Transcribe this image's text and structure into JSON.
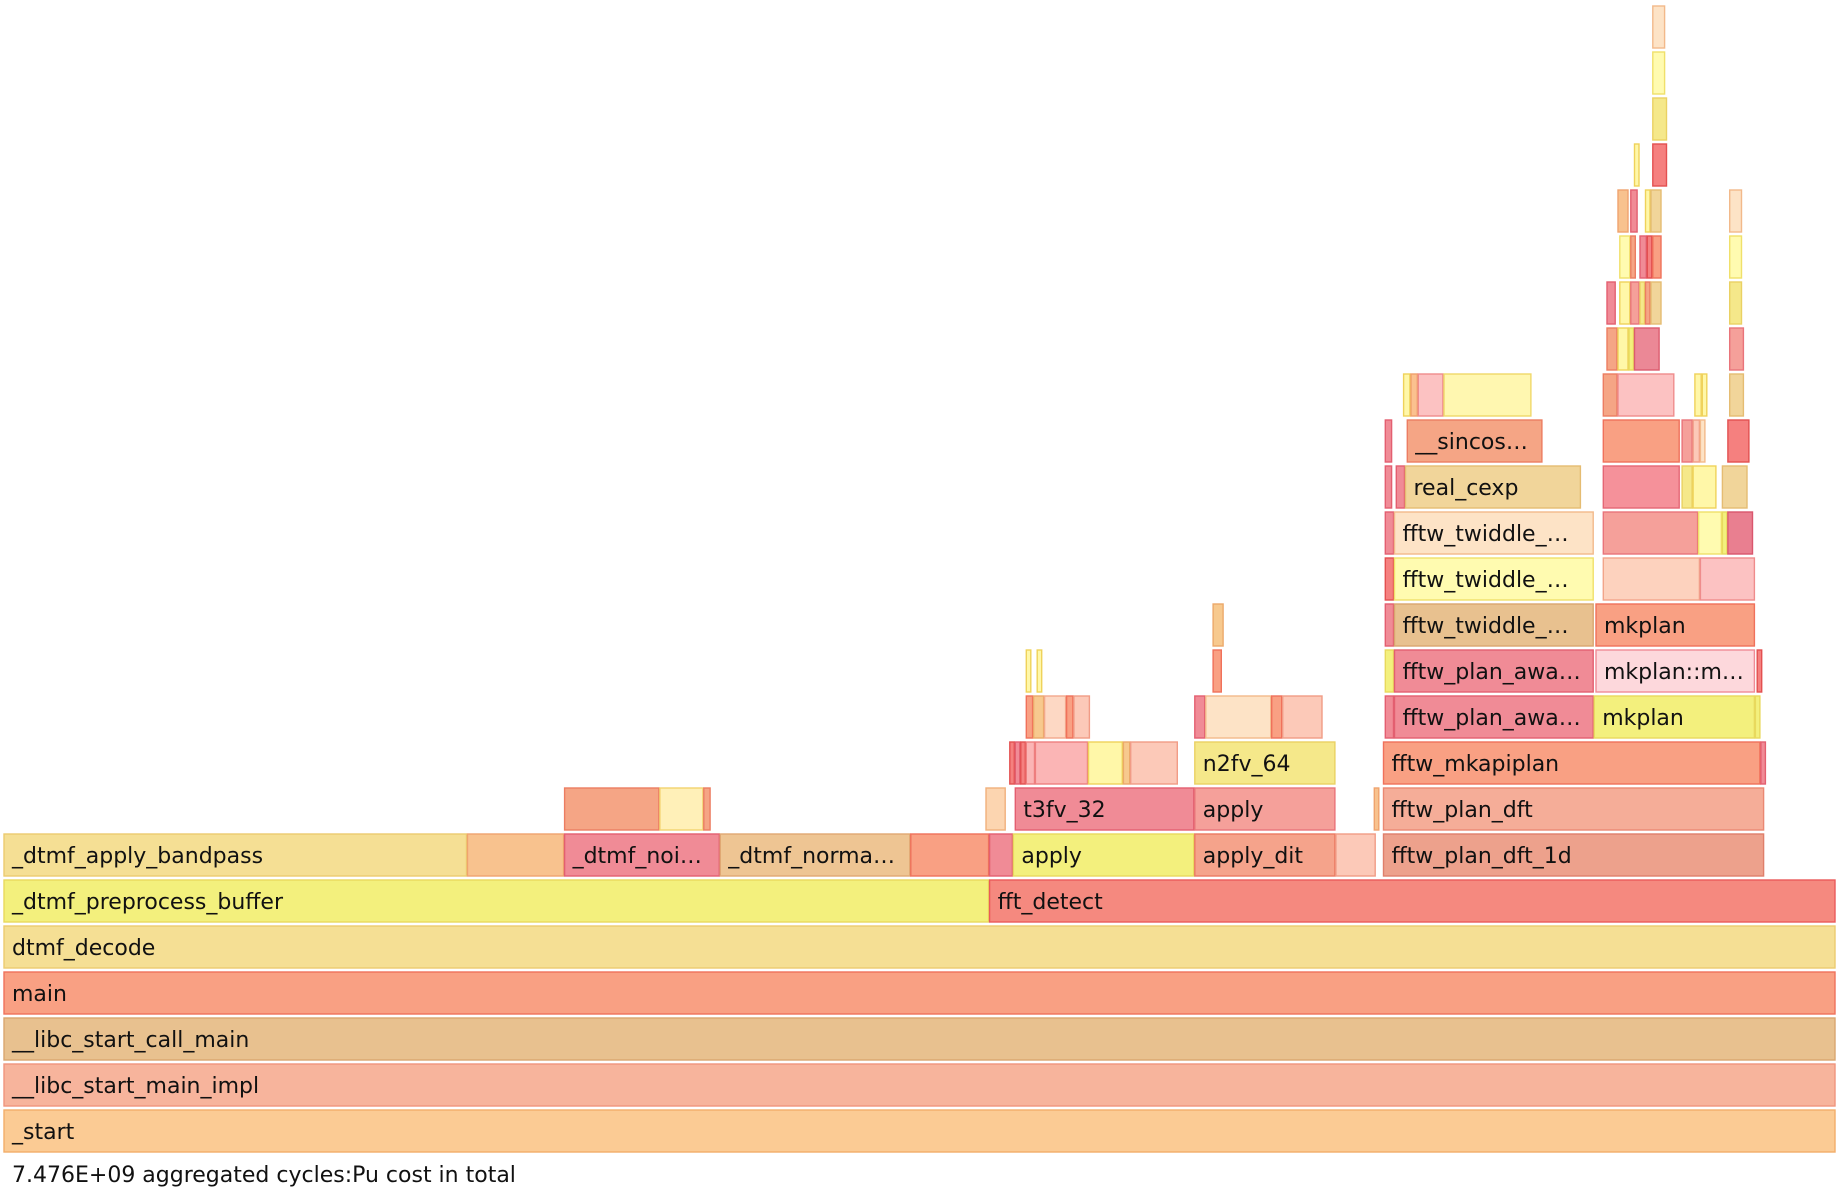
{
  "chart_data": {
    "type": "flamegraph",
    "total_units": 1000,
    "frames": [
      {
        "d": 0,
        "s": 0,
        "w": 1000,
        "name": "_start",
        "fill": "#fbcb94",
        "stroke": "#f3ad6a"
      },
      {
        "d": 1,
        "s": 0,
        "w": 1000,
        "name": "__libc_start_main_impl",
        "fill": "#f7b49c",
        "stroke": "#ef957d"
      },
      {
        "d": 2,
        "s": 0,
        "w": 1000,
        "name": "__libc_start_call_main",
        "fill": "#e8c18f",
        "stroke": "#d9a56f"
      },
      {
        "d": 3,
        "s": 0,
        "w": 1000,
        "name": "main",
        "fill": "#f9a083",
        "stroke": "#f0715b"
      },
      {
        "d": 4,
        "s": 0,
        "w": 1000,
        "name": "dtmf_decode",
        "fill": "#f5df94",
        "stroke": "#eccb6f"
      },
      {
        "d": 5,
        "s": 0,
        "w": 538,
        "name": "_dtmf_preprocess_buffer",
        "fill": "#f3f07d",
        "stroke": "#e8d95d"
      },
      {
        "d": 5,
        "s": 538,
        "w": 462,
        "name": "fft_detect",
        "fill": "#f5897f",
        "stroke": "#ea5a5a"
      },
      {
        "d": 6,
        "s": 0,
        "w": 253,
        "name": "_dtmf_apply_bandpass",
        "fill": "#f5df94",
        "stroke": "#eccb6f"
      },
      {
        "d": 6,
        "s": 253,
        "w": 53,
        "name": "",
        "fill": "#f8c28e",
        "stroke": "#efa36e"
      },
      {
        "d": 6,
        "s": 306,
        "w": 85,
        "name": "_dtmf_noi…",
        "fill": "#f08b96",
        "stroke": "#e35f70"
      },
      {
        "d": 6,
        "s": 391,
        "w": 104,
        "name": "_dtmf_norma…",
        "fill": "#eec593",
        "stroke": "#e0a873"
      },
      {
        "d": 6,
        "s": 495,
        "w": 43,
        "name": "",
        "fill": "#f9a083",
        "stroke": "#f0715b"
      },
      {
        "d": 6,
        "s": 538,
        "w": 13,
        "name": "",
        "fill": "#f08b96",
        "stroke": "#e35f70"
      },
      {
        "d": 6,
        "s": 551,
        "w": 99,
        "name": "apply",
        "fill": "#f3f07d",
        "stroke": "#e8d95d"
      },
      {
        "d": 6,
        "s": 650,
        "w": 77,
        "name": "apply_dit",
        "fill": "#f5a38b",
        "stroke": "#eb7a62"
      },
      {
        "d": 6,
        "s": 727,
        "w": 22,
        "name": "",
        "fill": "#fcc9b8",
        "stroke": "#f19c86"
      },
      {
        "d": 6,
        "s": 753,
        "w": 208,
        "name": "fftw_plan_dft_1d",
        "fill": "#eda18c",
        "stroke": "#df7f6b"
      },
      {
        "d": 7,
        "s": 306,
        "w": 52,
        "name": "",
        "fill": "#f5a585",
        "stroke": "#ec7d62"
      },
      {
        "d": 7,
        "s": 358,
        "w": 24,
        "name": "",
        "fill": "#fff0b8",
        "stroke": "#f2d36f"
      },
      {
        "d": 7,
        "s": 382,
        "w": 4,
        "name": "",
        "fill": "#f5a585",
        "stroke": "#ec7d62"
      },
      {
        "d": 7,
        "s": 536,
        "w": 11,
        "name": "",
        "fill": "#fcd5b0",
        "stroke": "#f1b07c"
      },
      {
        "d": 7,
        "s": 552,
        "w": 98,
        "name": "t3fv_32",
        "fill": "#f08b96",
        "stroke": "#e35f70"
      },
      {
        "d": 7,
        "s": 650,
        "w": 77,
        "name": "apply",
        "fill": "#f5a09a",
        "stroke": "#e9747a"
      },
      {
        "d": 7,
        "s": 748,
        "w": 3,
        "name": "",
        "fill": "#f8c28e",
        "stroke": "#efa36e"
      },
      {
        "d": 7,
        "s": 753,
        "w": 208,
        "name": "fftw_plan_dft",
        "fill": "#f5ad98",
        "stroke": "#ea8873"
      },
      {
        "d": 8,
        "s": 549,
        "w": 3,
        "name": "",
        "fill": "#f5807f",
        "stroke": "#e35050"
      },
      {
        "d": 8,
        "s": 552,
        "w": 3,
        "name": "",
        "fill": "#f08b96",
        "stroke": "#e35f70"
      },
      {
        "d": 8,
        "s": 555,
        "w": 3,
        "name": "",
        "fill": "#f5807f",
        "stroke": "#e35050"
      },
      {
        "d": 8,
        "s": 558,
        "w": 5,
        "name": "",
        "fill": "#fbb5b5",
        "stroke": "#ee7f7f"
      },
      {
        "d": 8,
        "s": 563,
        "w": 29,
        "name": "",
        "fill": "#fbb5b5",
        "stroke": "#ee7f7f"
      },
      {
        "d": 8,
        "s": 592,
        "w": 19,
        "name": "",
        "fill": "#fff7a8",
        "stroke": "#efd25a"
      },
      {
        "d": 8,
        "s": 611,
        "w": 4,
        "name": "",
        "fill": "#f7c98e",
        "stroke": "#eca96a"
      },
      {
        "d": 8,
        "s": 615,
        "w": 26,
        "name": "",
        "fill": "#fcc9b8",
        "stroke": "#f19c86"
      },
      {
        "d": 8,
        "s": 650,
        "w": 77,
        "name": "n2fv_64",
        "fill": "#f5e88a",
        "stroke": "#ead163"
      },
      {
        "d": 8,
        "s": 753,
        "w": 206,
        "name": "fftw_mkapiplan",
        "fill": "#f9a083",
        "stroke": "#f0715b"
      },
      {
        "d": 8,
        "s": 959,
        "w": 3,
        "name": "",
        "fill": "#f08b96",
        "stroke": "#e35f70"
      },
      {
        "d": 9,
        "s": 558,
        "w": 4,
        "name": "",
        "fill": "#f9a083",
        "stroke": "#f0715b"
      },
      {
        "d": 9,
        "s": 562,
        "w": 6,
        "name": "",
        "fill": "#f7c98e",
        "stroke": "#eca96a"
      },
      {
        "d": 9,
        "s": 568,
        "w": 12,
        "name": "",
        "fill": "#fdd8c4",
        "stroke": "#f2a98d"
      },
      {
        "d": 9,
        "s": 580,
        "w": 4,
        "name": "",
        "fill": "#f9a083",
        "stroke": "#f0715b"
      },
      {
        "d": 9,
        "s": 584,
        "w": 9,
        "name": "",
        "fill": "#fcc9b8",
        "stroke": "#f19c86"
      },
      {
        "d": 9,
        "s": 650,
        "w": 6,
        "name": "",
        "fill": "#f08b96",
        "stroke": "#e35f70"
      },
      {
        "d": 9,
        "s": 656,
        "w": 36,
        "name": "",
        "fill": "#fde3c6",
        "stroke": "#f2b98a"
      },
      {
        "d": 9,
        "s": 692,
        "w": 6,
        "name": "",
        "fill": "#f9a083",
        "stroke": "#f0715b"
      },
      {
        "d": 9,
        "s": 698,
        "w": 22,
        "name": "",
        "fill": "#fcc9b8",
        "stroke": "#f19c86"
      },
      {
        "d": 9,
        "s": 754,
        "w": 5,
        "name": "",
        "fill": "#f08b96",
        "stroke": "#e35f70"
      },
      {
        "d": 9,
        "s": 759,
        "w": 109,
        "name": "fftw_plan_awa…",
        "fill": "#f08b96",
        "stroke": "#e35f70"
      },
      {
        "d": 9,
        "s": 868,
        "w": 88,
        "name": "mkplan",
        "fill": "#f3f07d",
        "stroke": "#e8d95d"
      },
      {
        "d": 9,
        "s": 956,
        "w": 3,
        "name": "",
        "fill": "#f3f07d",
        "stroke": "#e8d95d"
      },
      {
        "d": 10,
        "s": 558,
        "w": 3,
        "name": "",
        "fill": "#fff7a8",
        "stroke": "#efd25a"
      },
      {
        "d": 10,
        "s": 564,
        "w": 3,
        "name": "",
        "fill": "#fff7a8",
        "stroke": "#efd25a"
      },
      {
        "d": 10,
        "s": 660,
        "w": 5,
        "name": "",
        "fill": "#f9a083",
        "stroke": "#f0715b"
      },
      {
        "d": 10,
        "s": 754,
        "w": 5,
        "name": "",
        "fill": "#f3f07d",
        "stroke": "#e8d95d"
      },
      {
        "d": 10,
        "s": 759,
        "w": 109,
        "name": "fftw_plan_awa…",
        "fill": "#f08b96",
        "stroke": "#e35f70"
      },
      {
        "d": 10,
        "s": 869,
        "w": 87,
        "name": "mkplan::m…",
        "fill": "#fdd8dc",
        "stroke": "#f08b96"
      },
      {
        "d": 10,
        "s": 957,
        "w": 3,
        "name": "",
        "fill": "#f5807f",
        "stroke": "#e35050"
      },
      {
        "d": 11,
        "s": 660,
        "w": 6,
        "name": "",
        "fill": "#f7c98e",
        "stroke": "#eca96a"
      },
      {
        "d": 11,
        "s": 754,
        "w": 5,
        "name": "",
        "fill": "#f08b96",
        "stroke": "#e35f70"
      },
      {
        "d": 11,
        "s": 759,
        "w": 109,
        "name": "fftw_twiddle_…",
        "fill": "#e8c18f",
        "stroke": "#d9a56f"
      },
      {
        "d": 11,
        "s": 869,
        "w": 87,
        "name": "mkplan",
        "fill": "#f9a083",
        "stroke": "#f0715b"
      },
      {
        "d": 12,
        "s": 754,
        "w": 5,
        "name": "",
        "fill": "#f5807f",
        "stroke": "#e35050"
      },
      {
        "d": 12,
        "s": 759,
        "w": 109,
        "name": "fftw_twiddle_…",
        "fill": "#fffbb0",
        "stroke": "#f0e06a"
      },
      {
        "d": 12,
        "s": 873,
        "w": 53,
        "name": "",
        "fill": "#fdd2be",
        "stroke": "#f2a58a"
      },
      {
        "d": 12,
        "s": 926,
        "w": 30,
        "name": "",
        "fill": "#fcc2c2",
        "stroke": "#ef8c8c"
      },
      {
        "d": 13,
        "s": 754,
        "w": 5,
        "name": "",
        "fill": "#f08b96",
        "stroke": "#e35f70"
      },
      {
        "d": 13,
        "s": 759,
        "w": 109,
        "name": "fftw_twiddle_…",
        "fill": "#fde3c6",
        "stroke": "#f2b98a"
      },
      {
        "d": 13,
        "s": 873,
        "w": 52,
        "name": "",
        "fill": "#f5a09a",
        "stroke": "#e9747a"
      },
      {
        "d": 13,
        "s": 925,
        "w": 13,
        "name": "",
        "fill": "#fffbb0",
        "stroke": "#f0e06a"
      },
      {
        "d": 13,
        "s": 938,
        "w": 3,
        "name": "",
        "fill": "#f3f07d",
        "stroke": "#e8d95d"
      },
      {
        "d": 13,
        "s": 941,
        "w": 14,
        "name": "",
        "fill": "#e97f90",
        "stroke": "#d9566d"
      },
      {
        "d": 14,
        "s": 754,
        "w": 4,
        "name": "",
        "fill": "#f08b96",
        "stroke": "#e35f70"
      },
      {
        "d": 14,
        "s": 760,
        "w": 5,
        "name": "",
        "fill": "#f08b96",
        "stroke": "#e35f70"
      },
      {
        "d": 14,
        "s": 765,
        "w": 96,
        "name": "real_cexp",
        "fill": "#f1d59a",
        "stroke": "#e5bc72"
      },
      {
        "d": 14,
        "s": 873,
        "w": 42,
        "name": "",
        "fill": "#f5919a",
        "stroke": "#e56675"
      },
      {
        "d": 14,
        "s": 916,
        "w": 6,
        "name": "",
        "fill": "#f5e88a",
        "stroke": "#ead163"
      },
      {
        "d": 14,
        "s": 922,
        "w": 13,
        "name": "",
        "fill": "#fff7a8",
        "stroke": "#efd25a"
      },
      {
        "d": 14,
        "s": 938,
        "w": 14,
        "name": "",
        "fill": "#f1d59a",
        "stroke": "#e5bc72"
      },
      {
        "d": 15,
        "s": 754,
        "w": 4,
        "name": "",
        "fill": "#f08b96",
        "stroke": "#e35f70"
      },
      {
        "d": 15,
        "s": 766,
        "w": 74,
        "name": "__sincos…",
        "fill": "#f5a585",
        "stroke": "#ec7d62"
      },
      {
        "d": 15,
        "s": 873,
        "w": 42,
        "name": "",
        "fill": "#f9a083",
        "stroke": "#f0715b"
      },
      {
        "d": 15,
        "s": 916,
        "w": 6,
        "name": "",
        "fill": "#f5a09a",
        "stroke": "#e9747a"
      },
      {
        "d": 15,
        "s": 922,
        "w": 4,
        "name": "",
        "fill": "#fcc9b8",
        "stroke": "#f19c86"
      },
      {
        "d": 15,
        "s": 926,
        "w": 3,
        "name": "",
        "fill": "#fde3c6",
        "stroke": "#f2b98a"
      },
      {
        "d": 15,
        "s": 941,
        "w": 12,
        "name": "",
        "fill": "#f5807f",
        "stroke": "#e35050"
      },
      {
        "d": 16,
        "s": 764,
        "w": 4,
        "name": "",
        "fill": "#fff7a8",
        "stroke": "#efd25a"
      },
      {
        "d": 16,
        "s": 768,
        "w": 4,
        "name": "",
        "fill": "#fbc18f",
        "stroke": "#f1a06c"
      },
      {
        "d": 16,
        "s": 772,
        "w": 14,
        "name": "",
        "fill": "#fcc2c2",
        "stroke": "#ef8c8c"
      },
      {
        "d": 16,
        "s": 786,
        "w": 48,
        "name": "",
        "fill": "#fff7b0",
        "stroke": "#f0d86a"
      },
      {
        "d": 16,
        "s": 873,
        "w": 8,
        "name": "",
        "fill": "#f5a585",
        "stroke": "#ec7d62"
      },
      {
        "d": 16,
        "s": 881,
        "w": 31,
        "name": "",
        "fill": "#fcc2c2",
        "stroke": "#ef8c8c"
      },
      {
        "d": 16,
        "s": 923,
        "w": 4,
        "name": "",
        "fill": "#fff7a8",
        "stroke": "#efd25a"
      },
      {
        "d": 16,
        "s": 927,
        "w": 3,
        "name": "",
        "fill": "#fff7a8",
        "stroke": "#efd25a"
      },
      {
        "d": 16,
        "s": 942,
        "w": 8,
        "name": "",
        "fill": "#f1d59a",
        "stroke": "#e5bc72"
      },
      {
        "d": 17,
        "s": 875,
        "w": 6,
        "name": "",
        "fill": "#f5a585",
        "stroke": "#ec7d62"
      },
      {
        "d": 17,
        "s": 881,
        "w": 6,
        "name": "",
        "fill": "#fff7a8",
        "stroke": "#efd25a"
      },
      {
        "d": 17,
        "s": 887,
        "w": 3,
        "name": "",
        "fill": "#f3f07d",
        "stroke": "#e8d95d"
      },
      {
        "d": 17,
        "s": 890,
        "w": 14,
        "name": "",
        "fill": "#eb8896",
        "stroke": "#dc5c6e"
      },
      {
        "d": 17,
        "s": 942,
        "w": 8,
        "name": "",
        "fill": "#f5a09a",
        "stroke": "#e9747a"
      },
      {
        "d": 18,
        "s": 875,
        "w": 5,
        "name": "",
        "fill": "#f08b96",
        "stroke": "#e35f70"
      },
      {
        "d": 18,
        "s": 882,
        "w": 6,
        "name": "",
        "fill": "#fff7a8",
        "stroke": "#efd25a"
      },
      {
        "d": 18,
        "s": 888,
        "w": 5,
        "name": "",
        "fill": "#f5a09a",
        "stroke": "#e9747a"
      },
      {
        "d": 18,
        "s": 893,
        "w": 3,
        "name": "",
        "fill": "#f5e88a",
        "stroke": "#ead163"
      },
      {
        "d": 18,
        "s": 896,
        "w": 3,
        "name": "",
        "fill": "#f5a585",
        "stroke": "#ec7d62"
      },
      {
        "d": 18,
        "s": 899,
        "w": 6,
        "name": "",
        "fill": "#f1d59a",
        "stroke": "#e5bc72"
      },
      {
        "d": 18,
        "s": 942,
        "w": 7,
        "name": "",
        "fill": "#f5e88a",
        "stroke": "#ead163"
      },
      {
        "d": 19,
        "s": 882,
        "w": 6,
        "name": "",
        "fill": "#fffbb0",
        "stroke": "#f0e06a"
      },
      {
        "d": 19,
        "s": 888,
        "w": 3,
        "name": "",
        "fill": "#f5a585",
        "stroke": "#ec7d62"
      },
      {
        "d": 19,
        "s": 893,
        "w": 4,
        "name": "",
        "fill": "#f08b96",
        "stroke": "#e35f70"
      },
      {
        "d": 19,
        "s": 897,
        "w": 3,
        "name": "",
        "fill": "#f5807f",
        "stroke": "#e35050"
      },
      {
        "d": 19,
        "s": 900,
        "w": 5,
        "name": "",
        "fill": "#f9a083",
        "stroke": "#f0715b"
      },
      {
        "d": 19,
        "s": 942,
        "w": 7,
        "name": "",
        "fill": "#fffbb0",
        "stroke": "#f0e06a"
      },
      {
        "d": 20,
        "s": 881,
        "w": 6,
        "name": "",
        "fill": "#f8c28e",
        "stroke": "#efa36e"
      },
      {
        "d": 20,
        "s": 888,
        "w": 4,
        "name": "",
        "fill": "#f08b96",
        "stroke": "#e35f70"
      },
      {
        "d": 20,
        "s": 896,
        "w": 3,
        "name": "",
        "fill": "#fff7a8",
        "stroke": "#efd25a"
      },
      {
        "d": 20,
        "s": 899,
        "w": 6,
        "name": "",
        "fill": "#f1d59a",
        "stroke": "#e5bc72"
      },
      {
        "d": 20,
        "s": 942,
        "w": 7,
        "name": "",
        "fill": "#fde3c6",
        "stroke": "#f2b98a"
      },
      {
        "d": 21,
        "s": 890,
        "w": 3,
        "name": "",
        "fill": "#fff7a8",
        "stroke": "#efd25a"
      },
      {
        "d": 21,
        "s": 900,
        "w": 8,
        "name": "",
        "fill": "#f5807f",
        "stroke": "#e35050"
      },
      {
        "d": 22,
        "s": 900,
        "w": 8,
        "name": "",
        "fill": "#f5e88a",
        "stroke": "#ead163"
      },
      {
        "d": 23,
        "s": 900,
        "w": 7,
        "name": "",
        "fill": "#fffbb0",
        "stroke": "#f0e06a"
      },
      {
        "d": 24,
        "s": 900,
        "w": 7,
        "name": "",
        "fill": "#fde3c6",
        "stroke": "#f2b98a"
      }
    ],
    "summary": "7.476E+09 aggregated cycles:Pu cost in total"
  }
}
